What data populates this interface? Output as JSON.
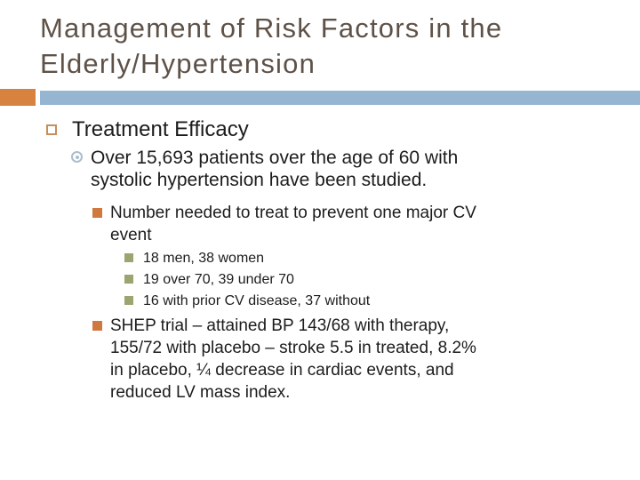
{
  "slide": {
    "title": {
      "lines": [
        "Management of Risk Factors in the",
        "Elderly/Hypertension"
      ]
    },
    "divider": {
      "orange_hex": "#D8823F",
      "blue_hex": "#95B5D1"
    },
    "colors": {
      "title_text": "#5E5248",
      "body_text": "#1C1C1C",
      "bullet_level1_border": "#C68E5C",
      "bullet_level2": "#A9BECC",
      "bullet_level3": "#D0793F",
      "bullet_level4": "#9CA470"
    },
    "content": {
      "heading": {
        "icon": "hollow-square-bullet-icon",
        "label": "Treatment Efficacy"
      },
      "study": {
        "icon": "target-circle-bullet-icon",
        "lines": [
          "Over 15,693 patients over the age of 60 with",
          "systolic hypertension have been studied."
        ]
      },
      "nnt": {
        "icon": "orange-square-bullet-icon",
        "lines": [
          "Number needed to treat to prevent one major CV",
          "event"
        ]
      },
      "nnt_details": {
        "icon": "olive-square-bullet-icon",
        "items": [
          "18 men, 38 women",
          "19 over 70, 39 under 70",
          "16 with prior CV disease, 37 without"
        ]
      },
      "shep": {
        "icon": "orange-square-bullet-icon",
        "lines": [
          "SHEP trial – attained BP 143/68 with therapy,",
          "155/72 with placebo – stroke 5.5 in treated, 8.2%",
          "in placebo, ¼ decrease in cardiac events, and",
          "reduced LV mass index."
        ]
      }
    }
  }
}
